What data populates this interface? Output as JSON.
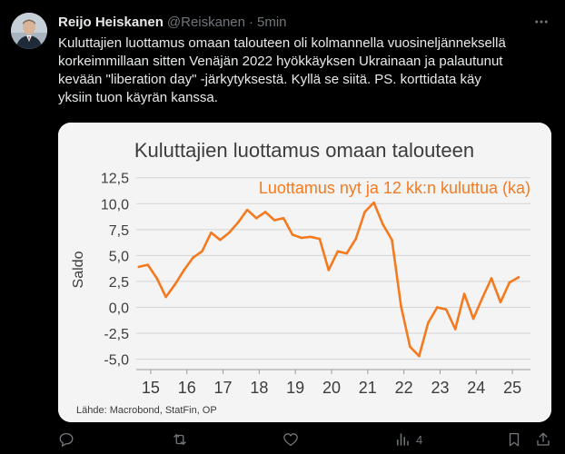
{
  "post": {
    "author_name": "Reijo Heiskanen",
    "author_handle": "@Reiskanen",
    "separator": "·",
    "time": "5min",
    "text_lines": [
      "Kuluttajien luottamus omaan talouteen oli kolmannella vuosineljänneksellä",
      "korkeimmillaan sitten Venäjän 2022 hyökkäyksen Ukrainaan ja palautunut",
      "kevään \"liberation day\" -järkytyksestä.  Kyllä se siitä. PS. korttidata käy",
      "yksiin tuon käyrän kanssa."
    ],
    "views": "4"
  },
  "icons": {
    "avatar": "avatar-photo",
    "more": "more-icon",
    "reply": "reply-icon",
    "repost": "repost-icon",
    "like": "like-icon",
    "views": "views-icon",
    "bookmark": "bookmark-icon",
    "share": "share-icon"
  },
  "colors": {
    "background": "#000000",
    "text": "#e7e9ea",
    "muted": "#71767b",
    "chart_line": "#f47a20",
    "chart_bg": "#f4f4f4"
  },
  "chart_data": {
    "type": "line",
    "title": "Kuluttajien luottamus omaan talouteen",
    "ylabel": "Saldo",
    "xlabel": "",
    "source": "Lähde: Macrobond, StatFin, OP",
    "ylim": [
      -6,
      13
    ],
    "xlim": [
      14.6,
      25.5
    ],
    "yticks": [
      12.5,
      10.0,
      7.5,
      5.0,
      2.5,
      0.0,
      -2.5,
      -5.0
    ],
    "ytick_labels": [
      "12,5",
      "10,0",
      "7,5",
      "5,0",
      "2,5",
      "0,0",
      "-2,5",
      "-5,0"
    ],
    "xticks": [
      15,
      16,
      17,
      18,
      19,
      20,
      21,
      22,
      23,
      24,
      25
    ],
    "xtick_labels": [
      "15",
      "16",
      "17",
      "18",
      "19",
      "20",
      "21",
      "22",
      "23",
      "24",
      "25"
    ],
    "grid": true,
    "series": [
      {
        "name": "Luottamus nyt ja 12 kk:n kuluttua (ka)",
        "color": "#f47a20",
        "x": [
          14.67,
          14.92,
          15.17,
          15.42,
          15.67,
          15.92,
          16.17,
          16.42,
          16.67,
          16.92,
          17.17,
          17.42,
          17.67,
          17.92,
          18.17,
          18.42,
          18.67,
          18.92,
          19.17,
          19.42,
          19.67,
          19.92,
          20.17,
          20.42,
          20.67,
          20.92,
          21.17,
          21.42,
          21.67,
          21.92,
          22.17,
          22.42,
          22.67,
          22.92,
          23.17,
          23.42,
          23.67,
          23.92,
          24.17,
          24.42,
          24.67,
          24.92,
          25.17
        ],
        "y": [
          3.9,
          4.1,
          2.8,
          1.0,
          2.2,
          3.6,
          4.8,
          5.4,
          7.2,
          6.5,
          7.2,
          8.2,
          9.4,
          8.6,
          9.2,
          8.4,
          8.6,
          7.0,
          6.7,
          6.8,
          6.6,
          3.6,
          5.4,
          5.2,
          6.6,
          9.2,
          10.1,
          8.0,
          6.5,
          0.1,
          -3.8,
          -4.7,
          -1.5,
          0.0,
          -0.2,
          -2.1,
          1.3,
          -1.1,
          0.9,
          2.8,
          0.5,
          2.4,
          2.9
        ]
      }
    ],
    "legend_position": "top-right"
  }
}
